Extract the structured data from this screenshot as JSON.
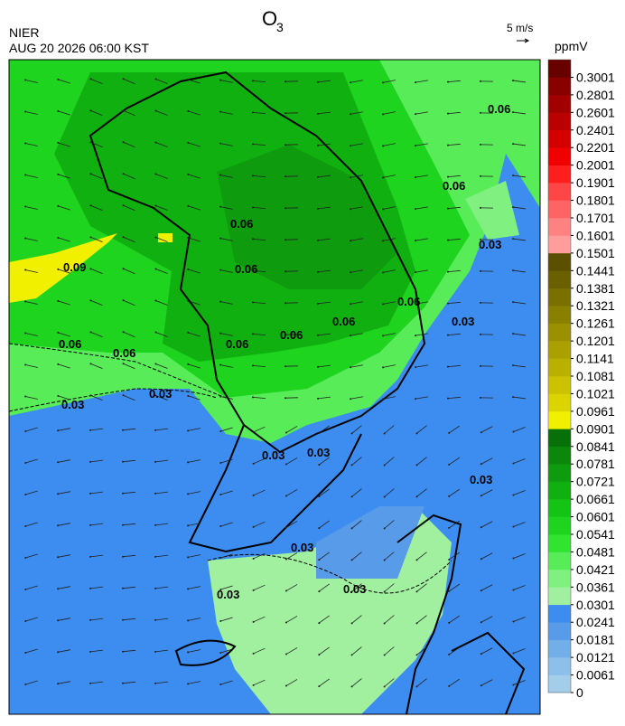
{
  "header": {
    "title": "O",
    "title_sub": "3",
    "agency": "NIER",
    "datetime": "AUG 20 2026 06:00 KST",
    "wind_scale": "5 m/s"
  },
  "colorbar": {
    "label": "ppmV",
    "ticks": [
      0,
      0.0061,
      0.0121,
      0.0181,
      0.0241,
      0.0301,
      0.0361,
      0.0421,
      0.0481,
      0.0541,
      0.0601,
      0.0661,
      0.0721,
      0.0781,
      0.0841,
      0.0901,
      0.0961,
      0.1021,
      0.1081,
      0.1141,
      0.1201,
      0.1261,
      0.1321,
      0.1381,
      0.1441,
      0.1501,
      0.1601,
      0.1701,
      0.1801,
      0.1901,
      0.2001,
      0.2201,
      0.2401,
      0.2601,
      0.2801,
      0.3001
    ],
    "colors": [
      "#a4cdea",
      "#8cc0ea",
      "#72aee8",
      "#589ce9",
      "#3d8cf0",
      "#a0f0a0",
      "#80f080",
      "#58ec58",
      "#30e430",
      "#1ed41e",
      "#14c414",
      "#10b010",
      "#0e9c0e",
      "#0b880b",
      "#087008",
      "#f0f000",
      "#dcd400",
      "#ccc200",
      "#bab000",
      "#aaa000",
      "#9a9000",
      "#8a8000",
      "#7a7000",
      "#6a6000",
      "#5a5000",
      "#ff9c9c",
      "#ff8282",
      "#ff6464",
      "#ff4646",
      "#ff1e1e",
      "#f00000",
      "#d40000",
      "#ba0000",
      "#a20000",
      "#880000",
      "#680000"
    ]
  },
  "contour_labels": [
    "0.06",
    "0.06",
    "0.06",
    "0.06",
    "0.06",
    "0.06",
    "0.06",
    "0.06",
    "0.06",
    "0.06",
    "0.09",
    "0.03",
    "0.03",
    "0.03",
    "0.03",
    "0.03",
    "0.03",
    "0.03",
    "0.03",
    "0.03",
    "0.03"
  ]
}
